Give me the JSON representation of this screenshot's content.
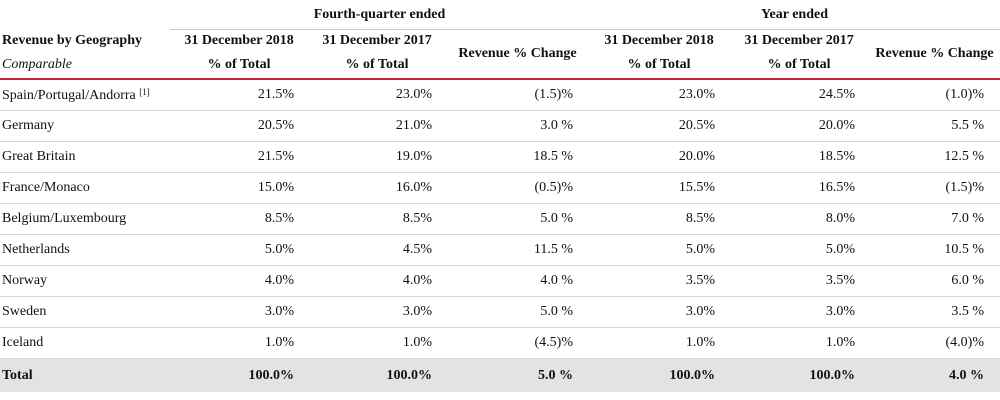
{
  "header": {
    "group_q4": "Fourth-quarter ended",
    "group_year": "Year ended",
    "row_label": "Revenue by Geography",
    "row_sublabel": "Comparable",
    "col_2018": "31 December 2018",
    "col_2017": "31 December 2017",
    "col_pct_total": "% of Total",
    "col_change": "Revenue % Change"
  },
  "rows": [
    {
      "name": "Spain/Portugal/Andorra",
      "note": "[1]",
      "q4_2018": "21.5%",
      "q4_2017": "23.0%",
      "q4_change": "(1.5)%",
      "y_2018": "23.0%",
      "y_2017": "24.5%",
      "y_change": "(1.0)%"
    },
    {
      "name": "Germany",
      "note": "",
      "q4_2018": "20.5%",
      "q4_2017": "21.0%",
      "q4_change": "3.0 %",
      "y_2018": "20.5%",
      "y_2017": "20.0%",
      "y_change": "5.5 %"
    },
    {
      "name": "Great Britain",
      "note": "",
      "q4_2018": "21.5%",
      "q4_2017": "19.0%",
      "q4_change": "18.5 %",
      "y_2018": "20.0%",
      "y_2017": "18.5%",
      "y_change": "12.5 %"
    },
    {
      "name": "France/Monaco",
      "note": "",
      "q4_2018": "15.0%",
      "q4_2017": "16.0%",
      "q4_change": "(0.5)%",
      "y_2018": "15.5%",
      "y_2017": "16.5%",
      "y_change": "(1.5)%"
    },
    {
      "name": "Belgium/Luxembourg",
      "note": "",
      "q4_2018": "8.5%",
      "q4_2017": "8.5%",
      "q4_change": "5.0 %",
      "y_2018": "8.5%",
      "y_2017": "8.0%",
      "y_change": "7.0 %"
    },
    {
      "name": "Netherlands",
      "note": "",
      "q4_2018": "5.0%",
      "q4_2017": "4.5%",
      "q4_change": "11.5 %",
      "y_2018": "5.0%",
      "y_2017": "5.0%",
      "y_change": "10.5 %"
    },
    {
      "name": "Norway",
      "note": "",
      "q4_2018": "4.0%",
      "q4_2017": "4.0%",
      "q4_change": "4.0 %",
      "y_2018": "3.5%",
      "y_2017": "3.5%",
      "y_change": "6.0 %"
    },
    {
      "name": "Sweden",
      "note": "",
      "q4_2018": "3.0%",
      "q4_2017": "3.0%",
      "q4_change": "5.0 %",
      "y_2018": "3.0%",
      "y_2017": "3.0%",
      "y_change": "3.5 %"
    },
    {
      "name": "Iceland",
      "note": "",
      "q4_2018": "1.0%",
      "q4_2017": "1.0%",
      "q4_change": "(4.5)%",
      "y_2018": "1.0%",
      "y_2017": "1.0%",
      "y_change": "(4.0)%"
    }
  ],
  "total": {
    "name": "Total",
    "q4_2018": "100.0%",
    "q4_2017": "100.0%",
    "q4_change": "5.0 %",
    "y_2018": "100.0%",
    "y_2017": "100.0%",
    "y_change": "4.0 %"
  },
  "colors": {
    "accent_rule": "#c0262d",
    "total_bg": "#e3e3e3"
  }
}
